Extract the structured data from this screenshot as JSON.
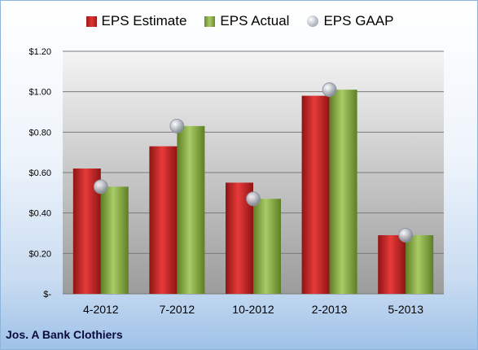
{
  "chart_data": {
    "type": "bar",
    "categories": [
      "4-2012",
      "7-2012",
      "10-2012",
      "2-2013",
      "5-2013"
    ],
    "series": [
      {
        "name": "EPS Estimate",
        "type": "bar",
        "color": "#cc2222",
        "values": [
          0.62,
          0.73,
          0.55,
          0.98,
          0.29
        ]
      },
      {
        "name": "EPS Actual",
        "type": "bar",
        "color": "#8db04a",
        "values": [
          0.53,
          0.83,
          0.47,
          1.01,
          0.29
        ]
      },
      {
        "name": "EPS GAAP",
        "type": "scatter",
        "color": "#b8bec7",
        "values": [
          0.53,
          0.83,
          0.47,
          1.01,
          0.29
        ]
      }
    ],
    "yticks": [
      "$-",
      "$0.20",
      "$0.40",
      "$0.60",
      "$0.80",
      "$1.00",
      "$1.20"
    ],
    "ylim": [
      0,
      1.2
    ],
    "grid": true,
    "legend": "top"
  },
  "legend": {
    "estimate": "EPS Estimate",
    "actual": "EPS Actual",
    "gaap": "EPS GAAP"
  },
  "footer": {
    "company": "Jos. A Bank Clothiers"
  }
}
